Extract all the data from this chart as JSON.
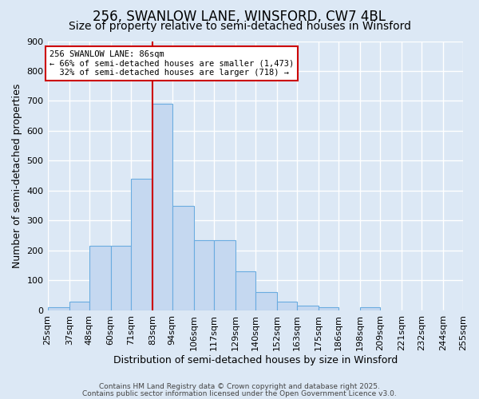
{
  "title": "256, SWANLOW LANE, WINSFORD, CW7 4BL",
  "subtitle": "Size of property relative to semi-detached houses in Winsford",
  "xlabel": "Distribution of semi-detached houses by size in Winsford",
  "ylabel": "Number of semi-detached properties",
  "bin_edges": [
    25,
    37,
    48,
    60,
    71,
    83,
    94,
    106,
    117,
    129,
    140,
    152,
    163,
    175,
    186,
    198,
    209,
    221,
    232,
    244,
    255
  ],
  "bin_labels": [
    "25sqm",
    "37sqm",
    "48sqm",
    "60sqm",
    "71sqm",
    "83sqm",
    "94sqm",
    "106sqm",
    "117sqm",
    "129sqm",
    "140sqm",
    "152sqm",
    "163sqm",
    "175sqm",
    "186sqm",
    "198sqm",
    "209sqm",
    "221sqm",
    "232sqm",
    "244sqm",
    "255sqm"
  ],
  "counts": [
    10,
    30,
    215,
    215,
    440,
    690,
    350,
    235,
    235,
    130,
    60,
    30,
    15,
    10,
    0,
    10,
    0,
    0,
    0,
    0
  ],
  "bar_color": "#c5d8f0",
  "bar_edge_color": "#6aace0",
  "red_line_x": 83,
  "ylim": [
    0,
    900
  ],
  "yticks": [
    0,
    100,
    200,
    300,
    400,
    500,
    600,
    700,
    800,
    900
  ],
  "annotation_text": "256 SWANLOW LANE: 86sqm\n← 66% of semi-detached houses are smaller (1,473)\n  32% of semi-detached houses are larger (718) →",
  "annotation_box_facecolor": "#ffffff",
  "annotation_box_edgecolor": "#cc0000",
  "footer1": "Contains HM Land Registry data © Crown copyright and database right 2025.",
  "footer2": "Contains public sector information licensed under the Open Government Licence v3.0.",
  "background_color": "#dce8f5",
  "grid_color": "#ffffff",
  "title_fontsize": 12,
  "subtitle_fontsize": 10,
  "ylabel_fontsize": 9,
  "xlabel_fontsize": 9,
  "tick_fontsize": 8,
  "footer_fontsize": 6.5
}
